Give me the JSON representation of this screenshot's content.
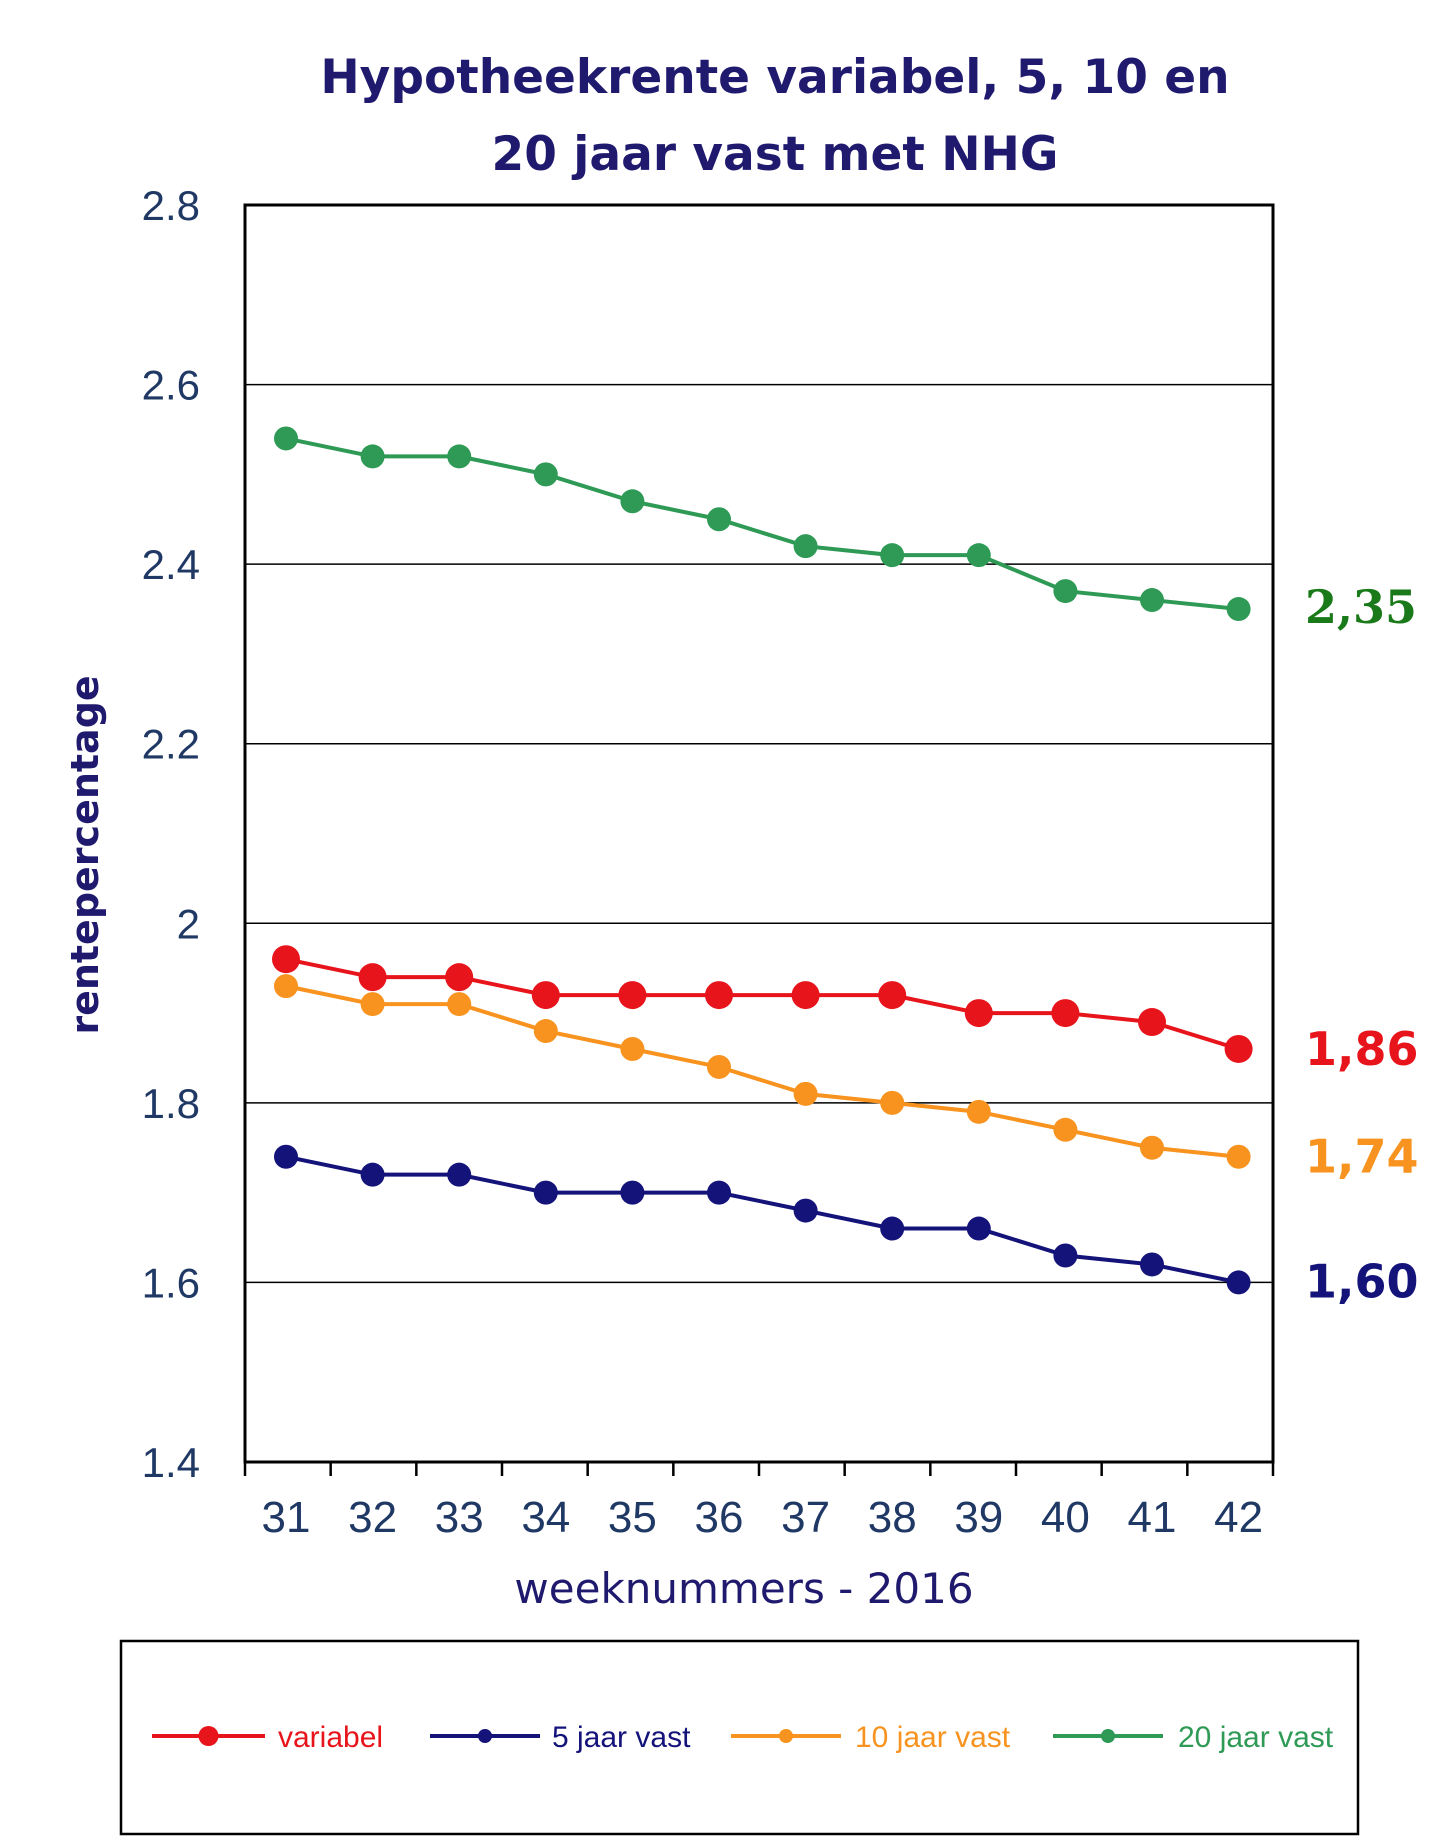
{
  "chart_data": {
    "type": "line",
    "title_lines": [
      "Hypotheekrente variabel, 5, 10 en",
      "20 jaar vast met NHG"
    ],
    "xlabel": "weeknummers - 2016",
    "ylabel": "rentepercentage",
    "categories": [
      "31",
      "32",
      "33",
      "34",
      "35",
      "36",
      "37",
      "38",
      "39",
      "40",
      "41",
      "42"
    ],
    "yticks": [
      "1.4",
      "1.6",
      "1.8",
      "2",
      "2.2",
      "2.4",
      "2.6",
      "2.8"
    ],
    "ylim": [
      1.4,
      2.8
    ],
    "grid": true,
    "legend_position": "bottom",
    "series": [
      {
        "name": "variabel",
        "color": "#e8141c",
        "marker": "large",
        "values": [
          1.96,
          1.94,
          1.94,
          1.92,
          1.92,
          1.92,
          1.92,
          1.92,
          1.9,
          1.9,
          1.89,
          1.86
        ],
        "end_label": "1,86"
      },
      {
        "name": "5 jaar vast",
        "color": "#14137a",
        "marker": "small",
        "values": [
          1.74,
          1.72,
          1.72,
          1.7,
          1.7,
          1.7,
          1.68,
          1.66,
          1.66,
          1.63,
          1.62,
          1.6
        ],
        "end_label": "1,60"
      },
      {
        "name": "10 jaar vast",
        "color": "#f7931e",
        "marker": "small",
        "values": [
          1.93,
          1.91,
          1.91,
          1.88,
          1.86,
          1.84,
          1.81,
          1.8,
          1.79,
          1.77,
          1.75,
          1.74
        ],
        "end_label": "1,74"
      },
      {
        "name": "20 jaar vast",
        "color": "#2e9a55",
        "marker": "small",
        "values": [
          2.54,
          2.52,
          2.52,
          2.5,
          2.47,
          2.45,
          2.42,
          2.41,
          2.41,
          2.37,
          2.36,
          2.35
        ],
        "end_label": "2,35"
      }
    ]
  },
  "colors": {
    "title": "#1f1a6e",
    "axis_text": "#1f3864",
    "grid": "#000000",
    "end_label_green": "#1a7a1a"
  }
}
